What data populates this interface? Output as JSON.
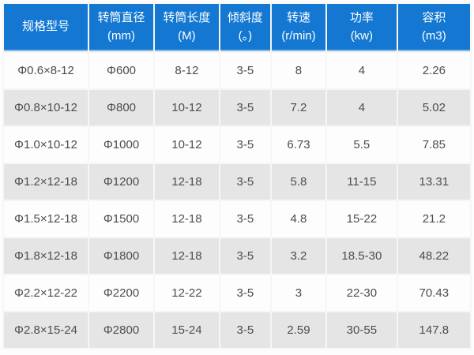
{
  "chart_data": {
    "type": "table",
    "columns": [
      {
        "label": "规格型号",
        "unit": ""
      },
      {
        "label": "转筒直径",
        "unit": "(mm)"
      },
      {
        "label": "转筒长度",
        "unit": "(M)"
      },
      {
        "label": "倾斜度",
        "unit": "(。)"
      },
      {
        "label": "转速",
        "unit": "(r/min)"
      },
      {
        "label": "功率",
        "unit": "(kw)"
      },
      {
        "label": "容积",
        "unit": "(m3)"
      }
    ],
    "rows": [
      [
        "Φ0.6×8-12",
        "Φ600",
        "8-12",
        "3-5",
        "8",
        "4",
        "2.26"
      ],
      [
        "Φ0.8×10-12",
        "Φ800",
        "10-12",
        "3-5",
        "7.2",
        "4",
        "5.02"
      ],
      [
        "Φ1.0×10-12",
        "Φ1000",
        "10-12",
        "3-5",
        "6.73",
        "5.5",
        "7.85"
      ],
      [
        "Φ1.2×12-18",
        "Φ1200",
        "12-18",
        "3-5",
        "5.8",
        "11-15",
        "13.31"
      ],
      [
        "Φ1.5×12-18",
        "Φ1500",
        "12-18",
        "3-5",
        "4.8",
        "15-22",
        "21.2"
      ],
      [
        "Φ1.8×12-18",
        "Φ1800",
        "12-18",
        "3-5",
        "3.2",
        "18.5-30",
        "48.22"
      ],
      [
        "Φ2.2×12-22",
        "Φ2200",
        "12-22",
        "3-5",
        "3",
        "22-30",
        "70.43"
      ],
      [
        "Φ2.8×15-24",
        "Φ2800",
        "15-24",
        "3-5",
        "2.59",
        "30-55",
        "147.8"
      ]
    ],
    "column_widths_pct": [
      18.35,
      14.0,
      14.0,
      10.9,
      11.8,
      15.15,
      15.8
    ]
  },
  "colors": {
    "header_bg": "#1478d2",
    "header_text": "#ffffff",
    "header_underline": "#8ab9e4",
    "row_bg": "#fdfdfd",
    "row_alt_bg": "#e5e5e5",
    "cell_text": "#4d4d4d",
    "gap_color": "#f6f6f6"
  }
}
